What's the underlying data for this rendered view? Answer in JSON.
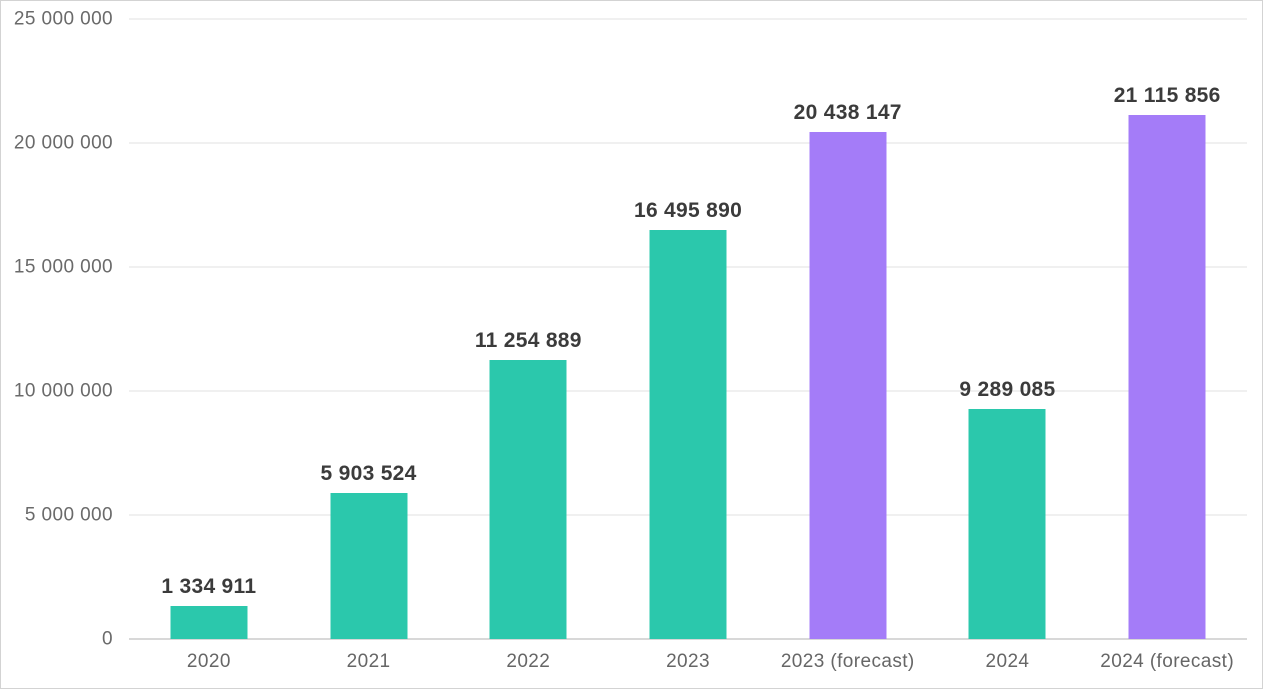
{
  "chart_data": {
    "type": "bar",
    "title": "",
    "xlabel": "",
    "ylabel": "",
    "legend": "none",
    "grid": "horizontal",
    "categories": [
      "2020",
      "2021",
      "2022",
      "2023",
      "2023 (forecast)",
      "2024",
      "2024 (forecast)"
    ],
    "values": [
      1334911,
      5903524,
      11254889,
      16495890,
      20438147,
      9289085,
      21115856
    ],
    "value_labels": [
      "1 334 911",
      "5 903 524",
      "11 254 889",
      "16 495 890",
      "20 438 147",
      "9 289 085",
      "21 115 856"
    ],
    "bar_kinds": [
      "actual",
      "actual",
      "actual",
      "actual",
      "forecast",
      "actual",
      "forecast"
    ],
    "colors": {
      "actual": "#2bc8ac",
      "forecast": "#a47cf8"
    },
    "y_axis": {
      "min": 0,
      "max": 25000000,
      "tick_step": 5000000,
      "tick_labels": [
        "0",
        "5 000 000",
        "10 000 000",
        "15 000 000",
        "20 000 000",
        "25 000 000"
      ]
    }
  }
}
